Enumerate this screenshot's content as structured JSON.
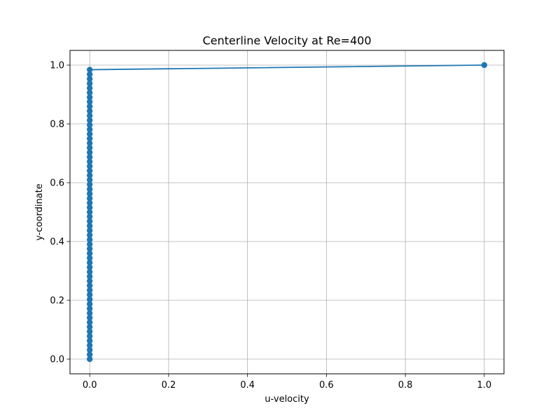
{
  "chart_data": {
    "type": "line",
    "title": "Centerline Velocity at Re=400",
    "xlabel": "u-velocity",
    "ylabel": "y-coordinate",
    "xlim": [
      -0.05,
      1.05
    ],
    "ylim": [
      -0.05,
      1.05
    ],
    "xticks": [
      0.0,
      0.2,
      0.4,
      0.6,
      0.8,
      1.0
    ],
    "yticks": [
      0.0,
      0.2,
      0.4,
      0.6,
      0.8,
      1.0
    ],
    "xtick_labels": [
      "0.0",
      "0.2",
      "0.4",
      "0.6",
      "0.8",
      "1.0"
    ],
    "ytick_labels": [
      "0.0",
      "0.2",
      "0.4",
      "0.6",
      "0.8",
      "1.0"
    ],
    "grid": true,
    "series": [
      {
        "color": "#1f77b4",
        "marker": "circle",
        "x": [
          0,
          0,
          0,
          0,
          0,
          0,
          0,
          0,
          0,
          0,
          0,
          0,
          0,
          0,
          0,
          0,
          0,
          0,
          0,
          0,
          0,
          0,
          0,
          0,
          0,
          0,
          0,
          0,
          0,
          0,
          0,
          0,
          0,
          0,
          0,
          0,
          0,
          0,
          0,
          0,
          0,
          0,
          0,
          0,
          0,
          0,
          0,
          0,
          0,
          0,
          0,
          0,
          0,
          0,
          0,
          0,
          0,
          0,
          0,
          0,
          0,
          0,
          0,
          0,
          1
        ],
        "y": [
          0.0,
          0.015625,
          0.03125,
          0.046875,
          0.0625,
          0.078125,
          0.09375,
          0.109375,
          0.125,
          0.140625,
          0.15625,
          0.171875,
          0.1875,
          0.203125,
          0.21875,
          0.234375,
          0.25,
          0.265625,
          0.28125,
          0.296875,
          0.3125,
          0.328125,
          0.34375,
          0.359375,
          0.375,
          0.390625,
          0.40625,
          0.421875,
          0.4375,
          0.453125,
          0.46875,
          0.484375,
          0.5,
          0.515625,
          0.53125,
          0.546875,
          0.5625,
          0.578125,
          0.59375,
          0.609375,
          0.625,
          0.640625,
          0.65625,
          0.671875,
          0.6875,
          0.703125,
          0.71875,
          0.734375,
          0.75,
          0.765625,
          0.78125,
          0.796875,
          0.8125,
          0.828125,
          0.84375,
          0.859375,
          0.875,
          0.890625,
          0.90625,
          0.921875,
          0.9375,
          0.953125,
          0.96875,
          0.984375,
          1.0
        ]
      }
    ]
  }
}
